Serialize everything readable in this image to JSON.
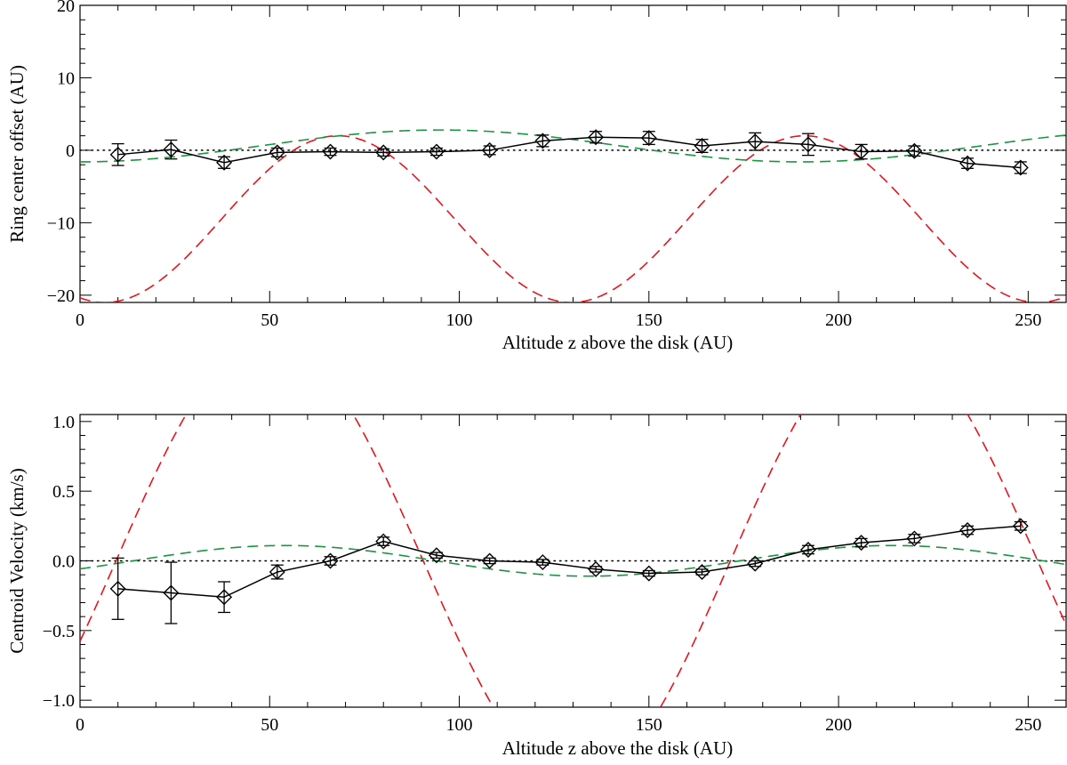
{
  "chart_data": [
    {
      "type": "line",
      "panel": "top",
      "title": "",
      "xlabel": "Altitude z above the disk (AU)",
      "ylabel": "Ring center offset (AU)",
      "xlim": [
        0,
        260
      ],
      "ylim": [
        -21,
        20
      ],
      "xticks": [
        0,
        50,
        100,
        150,
        200,
        250
      ],
      "xtick_labels": [
        "0",
        "50",
        "100",
        "150",
        "200",
        "250"
      ],
      "yticks": [
        -20,
        -10,
        0,
        10,
        20
      ],
      "ytick_labels": [
        "−20",
        "−10",
        "0",
        "10",
        "20"
      ],
      "reference_line": {
        "y": 0,
        "style": "dotted",
        "color": "#000000"
      },
      "series": [
        {
          "name": "data",
          "style": "solid",
          "marker": "diamond",
          "color": "#000000",
          "x": [
            10,
            24,
            38,
            52,
            66,
            80,
            94,
            108,
            122,
            136,
            150,
            164,
            178,
            192,
            206,
            220,
            234,
            248
          ],
          "y": [
            -0.6,
            0.1,
            -1.7,
            -0.3,
            -0.2,
            -0.3,
            -0.2,
            0.0,
            1.3,
            1.8,
            1.7,
            0.6,
            1.2,
            0.8,
            -0.2,
            -0.1,
            -1.8,
            -2.4
          ],
          "err": [
            1.5,
            1.3,
            0.8,
            0.6,
            0.5,
            0.5,
            0.5,
            0.6,
            0.8,
            0.8,
            0.9,
            0.9,
            1.2,
            1.5,
            1.0,
            0.7,
            0.7,
            0.8
          ]
        },
        {
          "name": "red model",
          "style": "dashed",
          "color": "#e8141e",
          "model": {
            "offset": -9.5,
            "amplitude": 11.5,
            "period": 123,
            "phase_x": 37.3
          }
        },
        {
          "name": "green model",
          "style": "dashed",
          "color": "#1a9641",
          "model": {
            "offset": 0.6,
            "amplitude": 2.2,
            "period": 190,
            "phase_x": 47.5
          }
        }
      ]
    },
    {
      "type": "line",
      "panel": "bottom",
      "title": "",
      "xlabel": "Altitude z above the disk (AU)",
      "ylabel": "Centroid Velocity (km/s)",
      "xlim": [
        0,
        260
      ],
      "ylim": [
        -1.05,
        1.05
      ],
      "xticks": [
        0,
        50,
        100,
        150,
        200,
        250
      ],
      "xtick_labels": [
        "0",
        "50",
        "100",
        "150",
        "200",
        "250"
      ],
      "yticks": [
        -1.0,
        -0.5,
        0.0,
        0.5,
        1.0
      ],
      "ytick_labels": [
        "−1.0",
        "−0.5",
        "0.0",
        "0.5",
        "1.0"
      ],
      "reference_line": {
        "y": 0,
        "style": "dotted",
        "color": "#000000"
      },
      "series": [
        {
          "name": "data",
          "style": "solid",
          "marker": "diamond",
          "color": "#000000",
          "x": [
            10,
            24,
            38,
            52,
            66,
            80,
            94,
            108,
            122,
            136,
            150,
            164,
            178,
            192,
            206,
            220,
            234,
            248
          ],
          "y": [
            -0.2,
            -0.23,
            -0.26,
            -0.08,
            0.0,
            0.14,
            0.04,
            0.0,
            -0.01,
            -0.06,
            -0.09,
            -0.08,
            -0.02,
            0.08,
            0.13,
            0.16,
            0.22,
            0.25
          ],
          "err": [
            0.22,
            0.22,
            0.11,
            0.05,
            0.03,
            0.03,
            0.02,
            0.02,
            0.02,
            0.02,
            0.02,
            0.02,
            0.02,
            0.03,
            0.03,
            0.03,
            0.03,
            0.03
          ]
        },
        {
          "name": "red model",
          "style": "dashed",
          "color": "#e8141e",
          "model": {
            "offset": 0.0,
            "amplitude": 1.6,
            "period": 162,
            "phase_x": 9.5
          }
        },
        {
          "name": "green model",
          "style": "dashed",
          "color": "#1a9641",
          "model": {
            "offset": 0.0,
            "amplitude": 0.11,
            "period": 160,
            "phase_x": 14
          }
        }
      ]
    }
  ]
}
